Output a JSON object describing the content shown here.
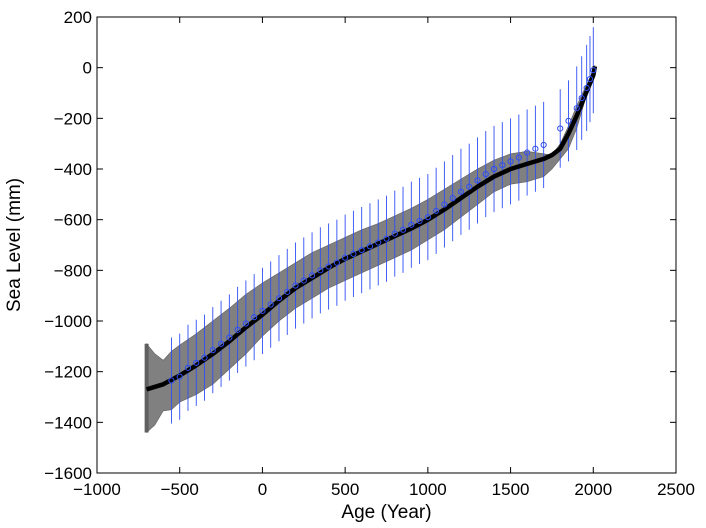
{
  "chart_data": {
    "type": "scatter",
    "title": "",
    "xlabel": "Age (Year)",
    "ylabel": "Sea Level (mm)",
    "xlim": [
      -1000,
      2500
    ],
    "ylim": [
      -1600,
      200
    ],
    "xticks": [
      -1000,
      -500,
      0,
      500,
      1000,
      1500,
      2000,
      2500
    ],
    "yticks": [
      -1600,
      -1400,
      -1200,
      -1000,
      -800,
      -600,
      -400,
      -200,
      0,
      200
    ],
    "xtick_labels": [
      "−1000",
      "−500",
      "0",
      "500",
      "1000",
      "1500",
      "2000",
      "2500"
    ],
    "ytick_labels": [
      "−1600",
      "−1400",
      "−1200",
      "−1000",
      "−800",
      "−600",
      "−400",
      "−200",
      "0",
      "200"
    ],
    "grid": false,
    "legend": "none",
    "series": [
      {
        "kind": "band",
        "color": "#808080",
        "x": [
          -700,
          -650,
          -600,
          -550,
          -500,
          -400,
          -300,
          -200,
          -100,
          0,
          100,
          200,
          300,
          400,
          500,
          600,
          700,
          800,
          900,
          1000,
          1100,
          1200,
          1300,
          1400,
          1500,
          1600,
          1700,
          1750,
          1800,
          1850,
          1900,
          1950,
          2000,
          2010
        ],
        "upper": [
          -1090,
          -1130,
          -1155,
          -1120,
          -1095,
          -1050,
          -1000,
          -950,
          -895,
          -850,
          -810,
          -770,
          -730,
          -700,
          -670,
          -640,
          -615,
          -585,
          -555,
          -520,
          -480,
          -440,
          -400,
          -365,
          -340,
          -330,
          -340,
          -345,
          -300,
          -230,
          -150,
          -80,
          -10,
          10
        ],
        "lower": [
          -1440,
          -1410,
          -1355,
          -1350,
          -1320,
          -1290,
          -1250,
          -1190,
          -1130,
          -1060,
          -1000,
          -950,
          -910,
          -870,
          -840,
          -810,
          -780,
          -750,
          -720,
          -680,
          -640,
          -590,
          -540,
          -490,
          -460,
          -450,
          -430,
          -400,
          -360,
          -320,
          -240,
          -130,
          -40,
          5
        ]
      },
      {
        "kind": "mean-line",
        "color": "#000000",
        "x": [
          -700,
          -600,
          -500,
          -400,
          -300,
          -200,
          -100,
          0,
          100,
          200,
          300,
          400,
          500,
          600,
          700,
          800,
          900,
          1000,
          1100,
          1200,
          1300,
          1400,
          1500,
          1600,
          1700,
          1750,
          1800,
          1850,
          1900,
          1950,
          2000,
          2010
        ],
        "y": [
          -1270,
          -1250,
          -1215,
          -1175,
          -1130,
          -1080,
          -1025,
          -975,
          -920,
          -870,
          -830,
          -790,
          -755,
          -725,
          -695,
          -665,
          -635,
          -600,
          -560,
          -515,
          -470,
          -430,
          -400,
          -380,
          -360,
          -345,
          -320,
          -260,
          -190,
          -110,
          -30,
          5
        ]
      },
      {
        "kind": "observations",
        "color": "#2f4ef5",
        "x": [
          -550,
          -500,
          -450,
          -400,
          -350,
          -300,
          -250,
          -200,
          -150,
          -100,
          -50,
          0,
          50,
          100,
          150,
          200,
          250,
          300,
          350,
          400,
          450,
          500,
          550,
          600,
          650,
          700,
          750,
          800,
          850,
          900,
          950,
          1000,
          1050,
          1100,
          1150,
          1200,
          1250,
          1300,
          1350,
          1400,
          1450,
          1500,
          1550,
          1600,
          1650,
          1700,
          1800,
          1850,
          1900,
          1930,
          1960,
          1980,
          2000
        ],
        "y": [
          -1235,
          -1220,
          -1185,
          -1165,
          -1145,
          -1115,
          -1090,
          -1065,
          -1035,
          -1010,
          -985,
          -960,
          -935,
          -910,
          -885,
          -860,
          -840,
          -820,
          -800,
          -785,
          -770,
          -750,
          -735,
          -720,
          -705,
          -690,
          -675,
          -655,
          -640,
          -620,
          -605,
          -590,
          -565,
          -540,
          -515,
          -490,
          -470,
          -445,
          -420,
          -400,
          -385,
          -370,
          -355,
          -335,
          -320,
          -305,
          -240,
          -210,
          -160,
          -120,
          -80,
          -45,
          -10
        ],
        "err": [
          170,
          170,
          170,
          170,
          170,
          170,
          170,
          170,
          170,
          170,
          170,
          170,
          170,
          170,
          170,
          170,
          170,
          170,
          170,
          170,
          170,
          170,
          170,
          170,
          170,
          170,
          170,
          170,
          170,
          170,
          170,
          170,
          170,
          170,
          170,
          170,
          170,
          170,
          170,
          170,
          170,
          170,
          170,
          170,
          170,
          170,
          155,
          160,
          165,
          165,
          170,
          170,
          170
        ]
      }
    ]
  }
}
